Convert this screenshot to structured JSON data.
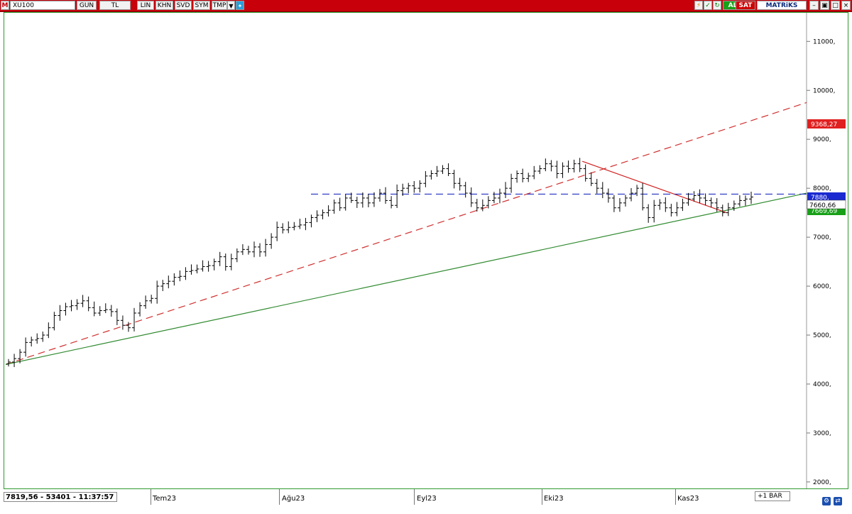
{
  "toolbar": {
    "logo": "M",
    "symbol": "XU100",
    "period": "GUN",
    "currency": "TL",
    "scale": "LIN",
    "khn": "KHN",
    "svd": "SVD",
    "sym": "SYM",
    "tmp": "TMP",
    "buy_label": "AL",
    "sell_label": "SAT",
    "brand": "MATRiKS"
  },
  "status": {
    "readout": "7819,56 - 53401 - 11:37:57",
    "plus_bar": "+1 BAR"
  },
  "price_tags": {
    "red": "9368,27",
    "blue": "7880,",
    "white": "7660,66",
    "green": "7669,69"
  },
  "colors": {
    "toolbar_bg": "#c8000a",
    "frame": "#2e9a2e",
    "dashed_red": "#d03030",
    "red_line": "#d02020",
    "blue_dashed": "#2030c0",
    "green_line": "#2f8a2f",
    "buy": "#18a018",
    "sell": "#d00000",
    "bars": "#000000"
  },
  "chart_data": {
    "type": "ohlc",
    "symbol": "XU100",
    "y_axis": {
      "ticks": [
        2000,
        3000,
        4000,
        5000,
        6000,
        7000,
        8000,
        9000,
        10000,
        11000
      ],
      "tick_labels": [
        "2000,",
        "3000,",
        "4000,",
        "5000,",
        "6000,",
        "7000,",
        "8000,",
        "9000,",
        "10000,",
        "11000,"
      ],
      "range": [
        1900,
        11600
      ],
      "position": "right"
    },
    "x_axis": {
      "labels": [
        "Tem23",
        "Ağu23",
        "Eyl23",
        "Eki23",
        "Kas23"
      ]
    },
    "grid": false,
    "close_values": [
      4450,
      4520,
      4650,
      4850,
      4900,
      4930,
      5000,
      5150,
      5400,
      5500,
      5580,
      5600,
      5650,
      5700,
      5560,
      5450,
      5500,
      5520,
      5480,
      5300,
      5200,
      5150,
      5450,
      5600,
      5700,
      5750,
      6000,
      6050,
      6100,
      6180,
      6200,
      6300,
      6320,
      6350,
      6400,
      6420,
      6500,
      6600,
      6400,
      6560,
      6700,
      6750,
      6700,
      6800,
      6700,
      6850,
      7000,
      7200,
      7150,
      7200,
      7220,
      7250,
      7300,
      7400,
      7450,
      7500,
      7550,
      7700,
      7600,
      7800,
      7750,
      7700,
      7800,
      7700,
      7800,
      7900,
      7750,
      7650,
      7950,
      8000,
      8050,
      8000,
      8100,
      8250,
      8300,
      8350,
      8400,
      8300,
      8100,
      8050,
      7900,
      7700,
      7600,
      7650,
      7750,
      7800,
      7900,
      8000,
      8200,
      8300,
      8200,
      8250,
      8350,
      8400,
      8500,
      8450,
      8300,
      8450,
      8400,
      8500,
      8400,
      8200,
      8100,
      8000,
      7900,
      7800,
      7600,
      7700,
      7800,
      7900,
      8000,
      7600,
      7400,
      7650,
      7700,
      7600,
      7500,
      7600,
      7700,
      7780,
      7850,
      7800,
      7750,
      7700,
      7600,
      7500,
      7600,
      7680,
      7750,
      7780,
      7820
    ],
    "trendlines": [
      {
        "style": "dashed",
        "color": "red",
        "from": [
          0,
          4400
        ],
        "to": [
          1,
          9750
        ]
      },
      {
        "style": "solid",
        "color": "green",
        "from": [
          0,
          4400
        ],
        "to": [
          1,
          7900
        ]
      },
      {
        "style": "solid",
        "color": "red",
        "from": [
          0.72,
          8550
        ],
        "to": [
          0.9,
          7500
        ]
      },
      {
        "style": "dashed",
        "color": "blue",
        "level": 7880
      }
    ]
  }
}
